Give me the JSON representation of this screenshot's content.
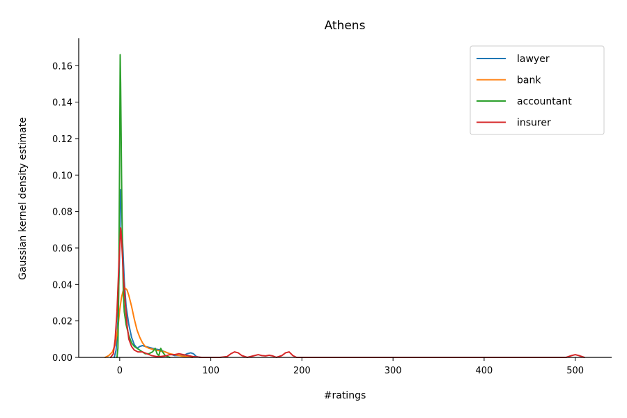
{
  "chart_data": {
    "type": "line",
    "title": "Athens",
    "xlabel": "#ratings",
    "ylabel": "Gaussian kernel density estimate",
    "xlim": [
      -45,
      540
    ],
    "ylim": [
      0,
      0.175
    ],
    "xticks": [
      0,
      100,
      200,
      300,
      400,
      500
    ],
    "yticks": [
      0.0,
      0.02,
      0.04,
      0.06,
      0.08,
      0.1,
      0.12,
      0.14,
      0.16
    ],
    "grid": false,
    "legend_position": "top-right",
    "series": [
      {
        "name": "lawyer",
        "color": "#1f77b4",
        "points": [
          [
            -6,
            0
          ],
          [
            -4,
            0.004
          ],
          [
            -2,
            0.02
          ],
          [
            0,
            0.06
          ],
          [
            1,
            0.092
          ],
          [
            2,
            0.086
          ],
          [
            3,
            0.065
          ],
          [
            5,
            0.042
          ],
          [
            7,
            0.028
          ],
          [
            10,
            0.018
          ],
          [
            13,
            0.011
          ],
          [
            16,
            0.007
          ],
          [
            19,
            0.005
          ],
          [
            22,
            0.006
          ],
          [
            25,
            0.0065
          ],
          [
            28,
            0.006
          ],
          [
            32,
            0.0055
          ],
          [
            36,
            0.005
          ],
          [
            40,
            0.0045
          ],
          [
            45,
            0.004
          ],
          [
            50,
            0.003
          ],
          [
            55,
            0.002
          ],
          [
            60,
            0.001
          ],
          [
            65,
            0.001
          ],
          [
            70,
            0.001
          ],
          [
            74,
            0.002
          ],
          [
            78,
            0.0025
          ],
          [
            81,
            0.002
          ],
          [
            84,
            0.0005
          ],
          [
            88,
            0
          ]
        ]
      },
      {
        "name": "bank",
        "color": "#ff7f0e",
        "points": [
          [
            -16,
            0
          ],
          [
            -12,
            0.001
          ],
          [
            -8,
            0.003
          ],
          [
            -5,
            0.007
          ],
          [
            -2,
            0.016
          ],
          [
            0,
            0.026
          ],
          [
            2,
            0.033
          ],
          [
            4,
            0.037
          ],
          [
            6,
            0.038
          ],
          [
            8,
            0.037
          ],
          [
            10,
            0.034
          ],
          [
            13,
            0.028
          ],
          [
            16,
            0.021
          ],
          [
            19,
            0.015
          ],
          [
            22,
            0.011
          ],
          [
            25,
            0.008
          ],
          [
            28,
            0.006
          ],
          [
            32,
            0.005
          ],
          [
            36,
            0.0045
          ],
          [
            40,
            0.004
          ],
          [
            45,
            0.0035
          ],
          [
            50,
            0.003
          ],
          [
            55,
            0.002
          ],
          [
            60,
            0.0015
          ],
          [
            65,
            0.001
          ],
          [
            70,
            0.0006
          ],
          [
            75,
            0.0003
          ],
          [
            80,
            0
          ]
        ]
      },
      {
        "name": "accountant",
        "color": "#2ca02c",
        "points": [
          [
            -3,
            0
          ],
          [
            -2,
            0.005
          ],
          [
            -1,
            0.04
          ],
          [
            0,
            0.12
          ],
          [
            0.5,
            0.166
          ],
          [
            1,
            0.15
          ],
          [
            2,
            0.1
          ],
          [
            3,
            0.06
          ],
          [
            4,
            0.035
          ],
          [
            5,
            0.025
          ],
          [
            7,
            0.018
          ],
          [
            10,
            0.012
          ],
          [
            13,
            0.008
          ],
          [
            16,
            0.006
          ],
          [
            19,
            0.005
          ],
          [
            22,
            0.004
          ],
          [
            25,
            0.003
          ],
          [
            28,
            0.002
          ],
          [
            32,
            0.002
          ],
          [
            36,
            0.003
          ],
          [
            39,
            0.005
          ],
          [
            41,
            0.002
          ],
          [
            43,
            0.001
          ],
          [
            45,
            0.005
          ],
          [
            47,
            0.003
          ],
          [
            50,
            0.001
          ],
          [
            55,
            0
          ]
        ]
      },
      {
        "name": "insurer",
        "color": "#d62728",
        "points": [
          [
            -10,
            0
          ],
          [
            -7,
            0.002
          ],
          [
            -5,
            0.01
          ],
          [
            -3,
            0.025
          ],
          [
            -1,
            0.05
          ],
          [
            1,
            0.071
          ],
          [
            2,
            0.065
          ],
          [
            4,
            0.045
          ],
          [
            6,
            0.03
          ],
          [
            8,
            0.018
          ],
          [
            10,
            0.01
          ],
          [
            13,
            0.006
          ],
          [
            16,
            0.004
          ],
          [
            20,
            0.003
          ],
          [
            25,
            0.003
          ],
          [
            30,
            0.002
          ],
          [
            35,
            0.001
          ],
          [
            40,
            0.0005
          ],
          [
            45,
            0.0005
          ],
          [
            50,
            0.0008
          ],
          [
            55,
            0.0015
          ],
          [
            60,
            0.0015
          ],
          [
            65,
            0.002
          ],
          [
            70,
            0.0015
          ],
          [
            75,
            0.001
          ],
          [
            80,
            0.0005
          ],
          [
            90,
            0
          ],
          [
            110,
            0
          ],
          [
            118,
            0.0005
          ],
          [
            122,
            0.002
          ],
          [
            126,
            0.003
          ],
          [
            130,
            0.0025
          ],
          [
            134,
            0.001
          ],
          [
            140,
            0
          ],
          [
            148,
            0.001
          ],
          [
            152,
            0.0015
          ],
          [
            156,
            0.001
          ],
          [
            160,
            0.0008
          ],
          [
            164,
            0.0012
          ],
          [
            168,
            0.0008
          ],
          [
            172,
            0
          ],
          [
            178,
            0.001
          ],
          [
            182,
            0.0025
          ],
          [
            186,
            0.003
          ],
          [
            190,
            0.001
          ],
          [
            194,
            0
          ],
          [
            300,
            0
          ],
          [
            490,
            0
          ],
          [
            496,
            0.001
          ],
          [
            500,
            0.0015
          ],
          [
            504,
            0.001
          ],
          [
            510,
            0
          ]
        ]
      }
    ]
  }
}
